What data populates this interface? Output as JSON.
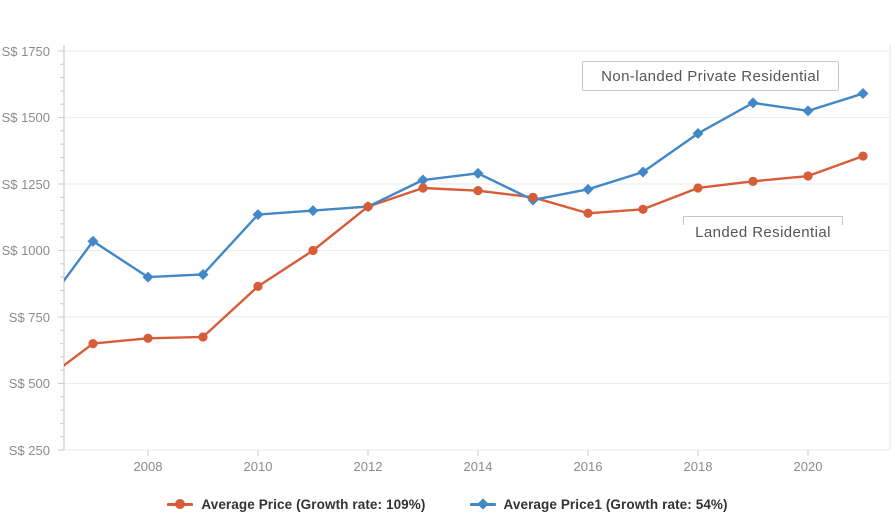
{
  "chart_data": {
    "type": "line",
    "title": "",
    "x": [
      2006,
      2007,
      2008,
      2009,
      2010,
      2011,
      2012,
      2013,
      2014,
      2015,
      2016,
      2017,
      2018,
      2019,
      2020,
      2021
    ],
    "series": [
      {
        "name": "Average Price (Growth rate: 109%)",
        "annotation": "Landed Residential",
        "color": "#d75d38",
        "marker": "circle",
        "values": [
          495,
          650,
          670,
          675,
          865,
          1000,
          1165,
          1235,
          1225,
          1200,
          1140,
          1155,
          1235,
          1260,
          1280,
          1355
        ]
      },
      {
        "name": "Average Price1 (Growth rate: 54%)",
        "annotation": "Non-landed Private Residential",
        "color": "#4287c6",
        "marker": "diamond",
        "values": [
          755,
          1035,
          900,
          910,
          1135,
          1150,
          1165,
          1265,
          1290,
          1190,
          1230,
          1295,
          1440,
          1555,
          1525,
          1590
        ]
      }
    ],
    "y_ticks": [
      250,
      500,
      750,
      1000,
      1250,
      1500,
      1750
    ],
    "y_tick_labels": [
      "S$ 1750",
      "S$ 1500",
      "S$ 1250",
      "S$ 1000",
      "S$ 750",
      "S$ 500",
      "S$ 250"
    ],
    "x_tick_years": [
      2008,
      2010,
      2012,
      2014,
      2016,
      2018,
      2020
    ],
    "x_tick_labels": [
      "2008",
      "2010",
      "2012",
      "2014",
      "2016",
      "2018",
      "2020"
    ],
    "ylim": [
      250,
      1750
    ],
    "xlim": [
      2006.5,
      2021.5
    ],
    "currency": "S$",
    "grid": "horizontal-only",
    "legend_position": "bottom-center",
    "note": "first point (2006) is clipped by the left edge of the plot"
  },
  "annotations": {
    "non_landed": "Non-landed Private Residential",
    "landed": "Landed Residential"
  },
  "colors": {
    "series_landed": "#d75d38",
    "series_non_landed": "#4287c6",
    "gridline": "#ededed",
    "axis": "#cfcfcf",
    "axis_text": "#8b8b8b",
    "legend_text": "#333333",
    "annotation_border": "#c6c6c6",
    "annotation_text": "#565656",
    "background": "#ffffff"
  }
}
